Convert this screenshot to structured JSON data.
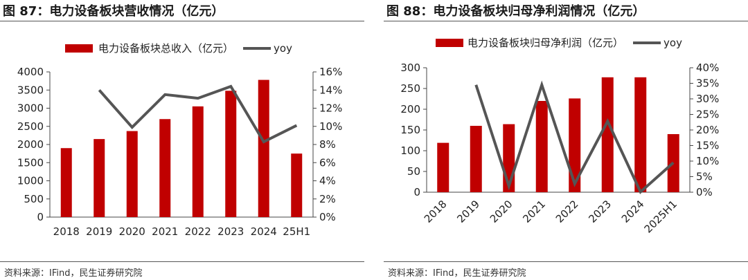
{
  "figures": [
    {
      "title": "图 87：电力设备板块营收情况（亿元）",
      "source": "资料来源：IFind，民生证券研究院"
    },
    {
      "title": "图 88：电力设备板块归母净利润情况（亿元）",
      "source": "资料来源：IFind，民生证券研究院"
    }
  ],
  "chart_data": [
    {
      "type": "bar",
      "categories": [
        "2018",
        "2019",
        "2020",
        "2021",
        "2022",
        "2023",
        "2024",
        "25H1"
      ],
      "series": [
        {
          "name": "电力设备板块总收入（亿元）",
          "type": "bar",
          "axis": "left",
          "color": "#c00000",
          "values": [
            1900,
            2150,
            2370,
            2700,
            3050,
            3480,
            3780,
            1750
          ]
        },
        {
          "name": "yoy",
          "type": "line",
          "axis": "right",
          "color": "#555555",
          "values": [
            null,
            14.0,
            9.9,
            13.5,
            13.1,
            14.4,
            8.3,
            10.1
          ]
        }
      ],
      "y_left": {
        "min": 0,
        "max": 4000,
        "ticks": [
          "0",
          "500",
          "1000",
          "1500",
          "2000",
          "2500",
          "3000",
          "3500",
          "4000"
        ]
      },
      "y_right": {
        "min": 0,
        "max": 16,
        "ticks": [
          "0%",
          "2%",
          "4%",
          "6%",
          "8%",
          "10%",
          "12%",
          "14%",
          "16%"
        ]
      },
      "x_label_rotation": 0,
      "legend_position": "top"
    },
    {
      "type": "bar",
      "categories": [
        "2018",
        "2019",
        "2020",
        "2021",
        "2022",
        "2023",
        "2024",
        "2025H1"
      ],
      "series": [
        {
          "name": "电力设备板块归母净利润（亿元）",
          "type": "bar",
          "axis": "left",
          "color": "#c00000",
          "values": [
            119,
            160,
            164,
            220,
            226,
            277,
            277,
            140
          ]
        },
        {
          "name": "yoy",
          "type": "line",
          "axis": "right",
          "color": "#555555",
          "values": [
            null,
            34.5,
            2.0,
            34.5,
            2.7,
            22.8,
            0.1,
            9.5
          ]
        }
      ],
      "y_left": {
        "min": 0,
        "max": 300,
        "ticks": [
          "0",
          "50",
          "100",
          "150",
          "200",
          "250",
          "300"
        ]
      },
      "y_right": {
        "min": 0,
        "max": 40,
        "ticks": [
          "0%",
          "5%",
          "10%",
          "15%",
          "20%",
          "25%",
          "30%",
          "35%",
          "40%"
        ]
      },
      "x_label_rotation": -45,
      "legend_position": "top"
    }
  ]
}
